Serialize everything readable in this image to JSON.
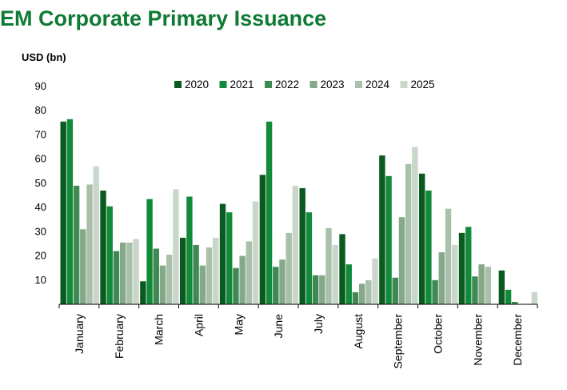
{
  "chart_data": {
    "type": "bar",
    "title": "EM Corporate Primary Issuance",
    "ylabel": "USD (bn)",
    "xlabel": "",
    "ylim": [
      0,
      90
    ],
    "yticks": [
      10,
      20,
      30,
      40,
      50,
      60,
      70,
      80,
      90
    ],
    "grid": false,
    "legend_position": "top",
    "categories": [
      "January",
      "February",
      "March",
      "April",
      "May",
      "June",
      "July",
      "August",
      "September",
      "October",
      "November",
      "December"
    ],
    "series": [
      {
        "name": "2020",
        "color": "#0b5a1f",
        "values": [
          75.5,
          47,
          9.5,
          27.5,
          41.5,
          53.5,
          48,
          29,
          61.5,
          54,
          29.5,
          14
        ]
      },
      {
        "name": "2021",
        "color": "#118a3a",
        "values": [
          76.5,
          40.5,
          43.5,
          44.5,
          38,
          75.5,
          38,
          16.5,
          53,
          47,
          32,
          6
        ]
      },
      {
        "name": "2022",
        "color": "#3f8a52",
        "values": [
          49,
          22,
          23,
          24.5,
          15,
          15.5,
          12,
          5,
          11,
          10,
          11.5,
          1
        ]
      },
      {
        "name": "2023",
        "color": "#84a888",
        "values": [
          31,
          25.5,
          16,
          16,
          20,
          18.5,
          12,
          8.5,
          36,
          21.5,
          16.5,
          0
        ]
      },
      {
        "name": "2024",
        "color": "#a9c0ab",
        "values": [
          49.5,
          25.5,
          20.5,
          23.5,
          26,
          29.5,
          31.5,
          10,
          58,
          39.5,
          15.5,
          0
        ]
      },
      {
        "name": "2025",
        "color": "#c9d7ca",
        "values": [
          57,
          27,
          47.5,
          27.5,
          42.5,
          49,
          24.5,
          19,
          65,
          24.5,
          0,
          5
        ]
      }
    ]
  }
}
